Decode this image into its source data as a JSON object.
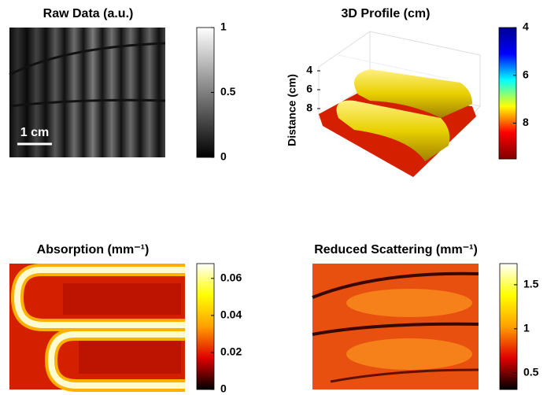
{
  "panels": [
    {
      "title": "Raw Data (a.u.)",
      "scale_bar": "1 cm",
      "colormap": "gray",
      "clim": [
        0,
        1
      ],
      "cticks": [
        0,
        0.5,
        1
      ]
    },
    {
      "title": "3D Profile (cm)",
      "z_label": "Distance (cm)",
      "zlim": [
        4,
        8
      ],
      "zticks": [
        4,
        6,
        8
      ],
      "colormap": "jet",
      "reverse": true,
      "clim": [
        4,
        9.5
      ],
      "cticks": [
        4,
        6,
        8
      ]
    },
    {
      "title": "Absorption (mm⁻¹)",
      "colormap": "hot",
      "clim": [
        0,
        0.068
      ],
      "cticks": [
        0,
        0.02,
        0.04,
        0.06
      ]
    },
    {
      "title": "Reduced Scattering (mm⁻¹)",
      "colormap": "hot",
      "clim": [
        0.31,
        1.74
      ],
      "cticks": [
        0.5,
        1,
        1.5
      ]
    }
  ]
}
